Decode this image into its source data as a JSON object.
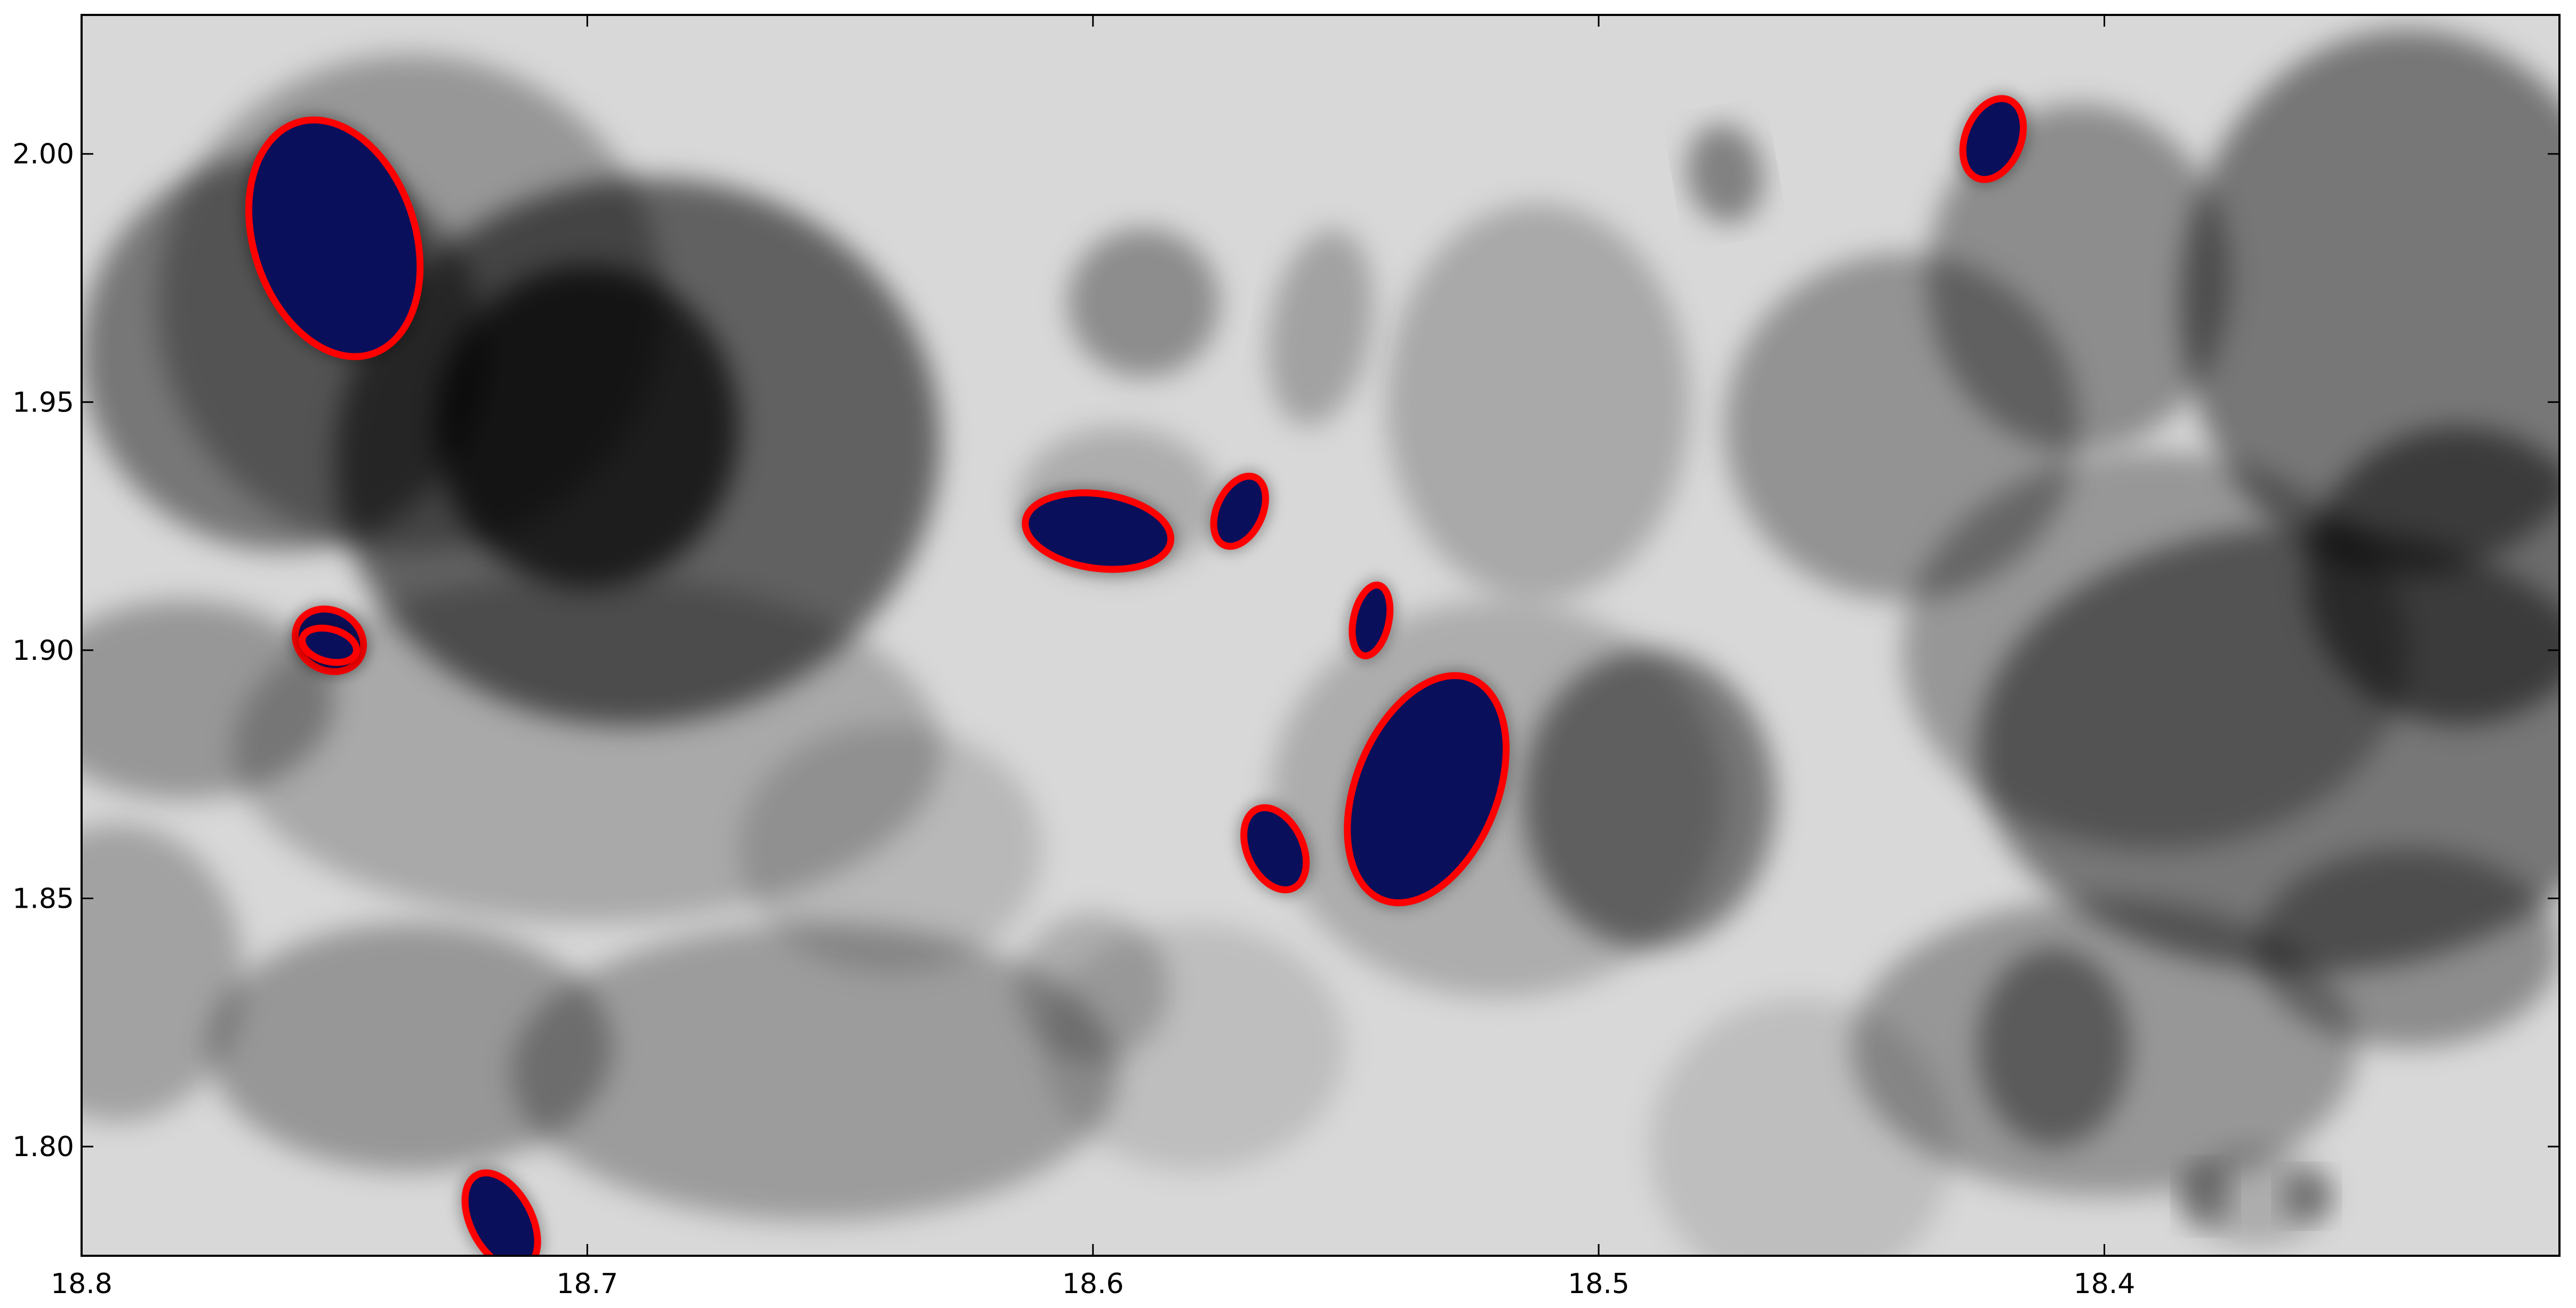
{
  "chart_data": {
    "type": "scatter",
    "title": "",
    "xlabel": "",
    "ylabel": "",
    "x_inverted": true,
    "xlim": [
      18.8,
      18.31
    ],
    "ylim": [
      1.778,
      2.028
    ],
    "xticks": [
      18.8,
      18.7,
      18.6,
      18.5,
      18.4
    ],
    "xtick_labels": [
      "18.8",
      "18.7",
      "18.6",
      "18.5",
      "18.4"
    ],
    "yticks": [
      1.8,
      1.85,
      1.9,
      1.95,
      2.0
    ],
    "ytick_labels": [
      "1.80",
      "1.85",
      "1.90",
      "1.95",
      "2.00"
    ],
    "grid": false,
    "legend": "none",
    "background": "grayscale density map of overlapping translucent ellipses",
    "colors": {
      "selected_fill": "#0a0f5c",
      "selected_outline": "#ff0000",
      "background_dark": "#000000",
      "background_light": "#d8d8d8"
    },
    "selected_ellipses": [
      {
        "x": 18.75,
        "y": 1.983,
        "width": 0.032,
        "height": 0.049,
        "angle": 18
      },
      {
        "x": 18.717,
        "y": 1.785,
        "width": 0.012,
        "height": 0.021,
        "angle": 28
      },
      {
        "x": 18.599,
        "y": 1.924,
        "width": 0.029,
        "height": 0.015,
        "angle": -8
      },
      {
        "x": 18.571,
        "y": 1.928,
        "width": 0.009,
        "height": 0.015,
        "angle": -25
      },
      {
        "x": 18.545,
        "y": 1.906,
        "width": 0.007,
        "height": 0.0145,
        "angle": -12
      },
      {
        "x": 18.564,
        "y": 1.86,
        "width": 0.011,
        "height": 0.0175,
        "angle": 25
      },
      {
        "x": 18.534,
        "y": 1.872,
        "width": 0.028,
        "height": 0.048,
        "angle": -22
      },
      {
        "x": 18.751,
        "y": 1.902,
        "width": 0.014,
        "height": 0.012,
        "angle": -30
      },
      {
        "x": 18.751,
        "y": 1.901,
        "width": 0.011,
        "height": 0.0065,
        "angle": -15
      },
      {
        "x": 18.422,
        "y": 2.003,
        "width": 0.011,
        "height": 0.017,
        "angle": -22
      }
    ],
    "background_ellipses": [
      {
        "x": 18.69,
        "y": 1.94,
        "width": 0.12,
        "height": 0.11,
        "angle": 10,
        "darkness": 0.55
      },
      {
        "x": 18.7,
        "y": 1.945,
        "width": 0.06,
        "height": 0.065,
        "angle": 0,
        "darkness": 0.7
      },
      {
        "x": 18.76,
        "y": 1.96,
        "width": 0.08,
        "height": 0.08,
        "angle": 0,
        "darkness": 0.45
      },
      {
        "x": 18.735,
        "y": 1.97,
        "width": 0.1,
        "height": 0.1,
        "angle": 0,
        "darkness": 0.3
      },
      {
        "x": 18.78,
        "y": 1.89,
        "width": 0.06,
        "height": 0.04,
        "angle": 0,
        "darkness": 0.3
      },
      {
        "x": 18.7,
        "y": 1.88,
        "width": 0.14,
        "height": 0.07,
        "angle": 0,
        "darkness": 0.22
      },
      {
        "x": 18.655,
        "y": 1.815,
        "width": 0.12,
        "height": 0.06,
        "angle": 0,
        "darkness": 0.28
      },
      {
        "x": 18.735,
        "y": 1.82,
        "width": 0.08,
        "height": 0.05,
        "angle": 0,
        "darkness": 0.3
      },
      {
        "x": 18.793,
        "y": 1.835,
        "width": 0.05,
        "height": 0.06,
        "angle": 0,
        "darkness": 0.25
      },
      {
        "x": 18.59,
        "y": 1.97,
        "width": 0.03,
        "height": 0.03,
        "angle": 0,
        "darkness": 0.35
      },
      {
        "x": 18.595,
        "y": 1.93,
        "width": 0.04,
        "height": 0.03,
        "angle": 0,
        "darkness": 0.2
      },
      {
        "x": 18.555,
        "y": 1.965,
        "width": 0.02,
        "height": 0.04,
        "angle": -10,
        "darkness": 0.25
      },
      {
        "x": 18.512,
        "y": 1.95,
        "width": 0.06,
        "height": 0.08,
        "angle": 0,
        "darkness": 0.22
      },
      {
        "x": 18.49,
        "y": 1.87,
        "width": 0.05,
        "height": 0.06,
        "angle": 0,
        "darkness": 0.45
      },
      {
        "x": 18.52,
        "y": 1.87,
        "width": 0.09,
        "height": 0.08,
        "angle": 0,
        "darkness": 0.2
      },
      {
        "x": 18.6,
        "y": 1.832,
        "width": 0.03,
        "height": 0.03,
        "angle": 0,
        "darkness": 0.2
      },
      {
        "x": 18.475,
        "y": 1.996,
        "width": 0.015,
        "height": 0.02,
        "angle": 10,
        "darkness": 0.4
      },
      {
        "x": 18.44,
        "y": 1.945,
        "width": 0.07,
        "height": 0.07,
        "angle": 0,
        "darkness": 0.32
      },
      {
        "x": 18.405,
        "y": 1.975,
        "width": 0.06,
        "height": 0.07,
        "angle": 0,
        "darkness": 0.35
      },
      {
        "x": 18.34,
        "y": 1.97,
        "width": 0.09,
        "height": 0.11,
        "angle": 0,
        "darkness": 0.45
      },
      {
        "x": 18.33,
        "y": 1.915,
        "width": 0.06,
        "height": 0.06,
        "angle": 0,
        "darkness": 0.5
      },
      {
        "x": 18.36,
        "y": 1.88,
        "width": 0.13,
        "height": 0.09,
        "angle": 0,
        "darkness": 0.45
      },
      {
        "x": 18.39,
        "y": 1.9,
        "width": 0.1,
        "height": 0.08,
        "angle": 0,
        "darkness": 0.3
      },
      {
        "x": 18.4,
        "y": 1.82,
        "width": 0.1,
        "height": 0.06,
        "angle": 0,
        "darkness": 0.3
      },
      {
        "x": 18.41,
        "y": 1.82,
        "width": 0.03,
        "height": 0.04,
        "angle": 0,
        "darkness": 0.4
      },
      {
        "x": 18.34,
        "y": 1.84,
        "width": 0.06,
        "height": 0.04,
        "angle": 0,
        "darkness": 0.35
      },
      {
        "x": 18.37,
        "y": 1.79,
        "width": 0.03,
        "height": 0.02,
        "angle": 0,
        "darkness": 0.2
      },
      {
        "x": 18.38,
        "y": 1.79,
        "width": 0.01,
        "height": 0.012,
        "angle": 0,
        "darkness": 0.35
      },
      {
        "x": 18.36,
        "y": 1.79,
        "width": 0.01,
        "height": 0.01,
        "angle": 0,
        "darkness": 0.35
      },
      {
        "x": 18.46,
        "y": 1.8,
        "width": 0.06,
        "height": 0.06,
        "angle": 0,
        "darkness": 0.12
      },
      {
        "x": 18.64,
        "y": 1.86,
        "width": 0.06,
        "height": 0.05,
        "angle": 0,
        "darkness": 0.15
      },
      {
        "x": 18.58,
        "y": 1.82,
        "width": 0.06,
        "height": 0.05,
        "angle": 0,
        "darkness": 0.12
      }
    ]
  }
}
